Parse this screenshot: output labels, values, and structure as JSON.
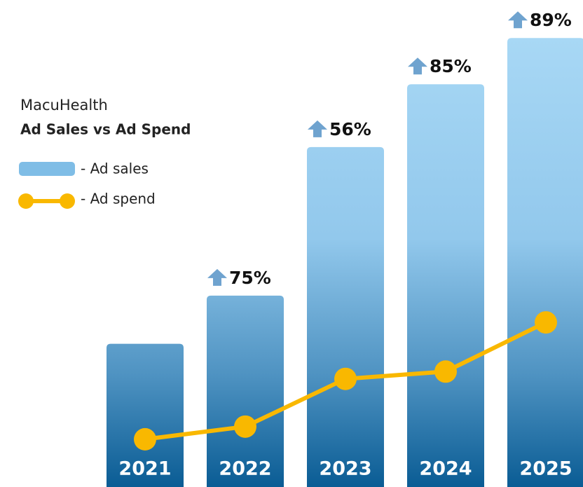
{
  "chart_data": {
    "type": "bar",
    "title": "MacuHealth",
    "subtitle": "Ad Sales vs Ad Spend",
    "categories": [
      "2021",
      "2022",
      "2023",
      "2024",
      "2025"
    ],
    "ylim": [
      0,
      100
    ],
    "series": [
      {
        "name": "- Ad sales",
        "type": "bar",
        "color": "#7fbde6",
        "values": [
          29.4,
          39.3,
          69.8,
          82.7,
          92.2
        ],
        "annotations": [
          null,
          "75%",
          "56%",
          "85%",
          "89%"
        ]
      },
      {
        "name": "- Ad spend",
        "type": "line",
        "color": "#f9b800",
        "values": [
          9.8,
          12.4,
          22.2,
          23.7,
          33.8
        ]
      }
    ]
  }
}
